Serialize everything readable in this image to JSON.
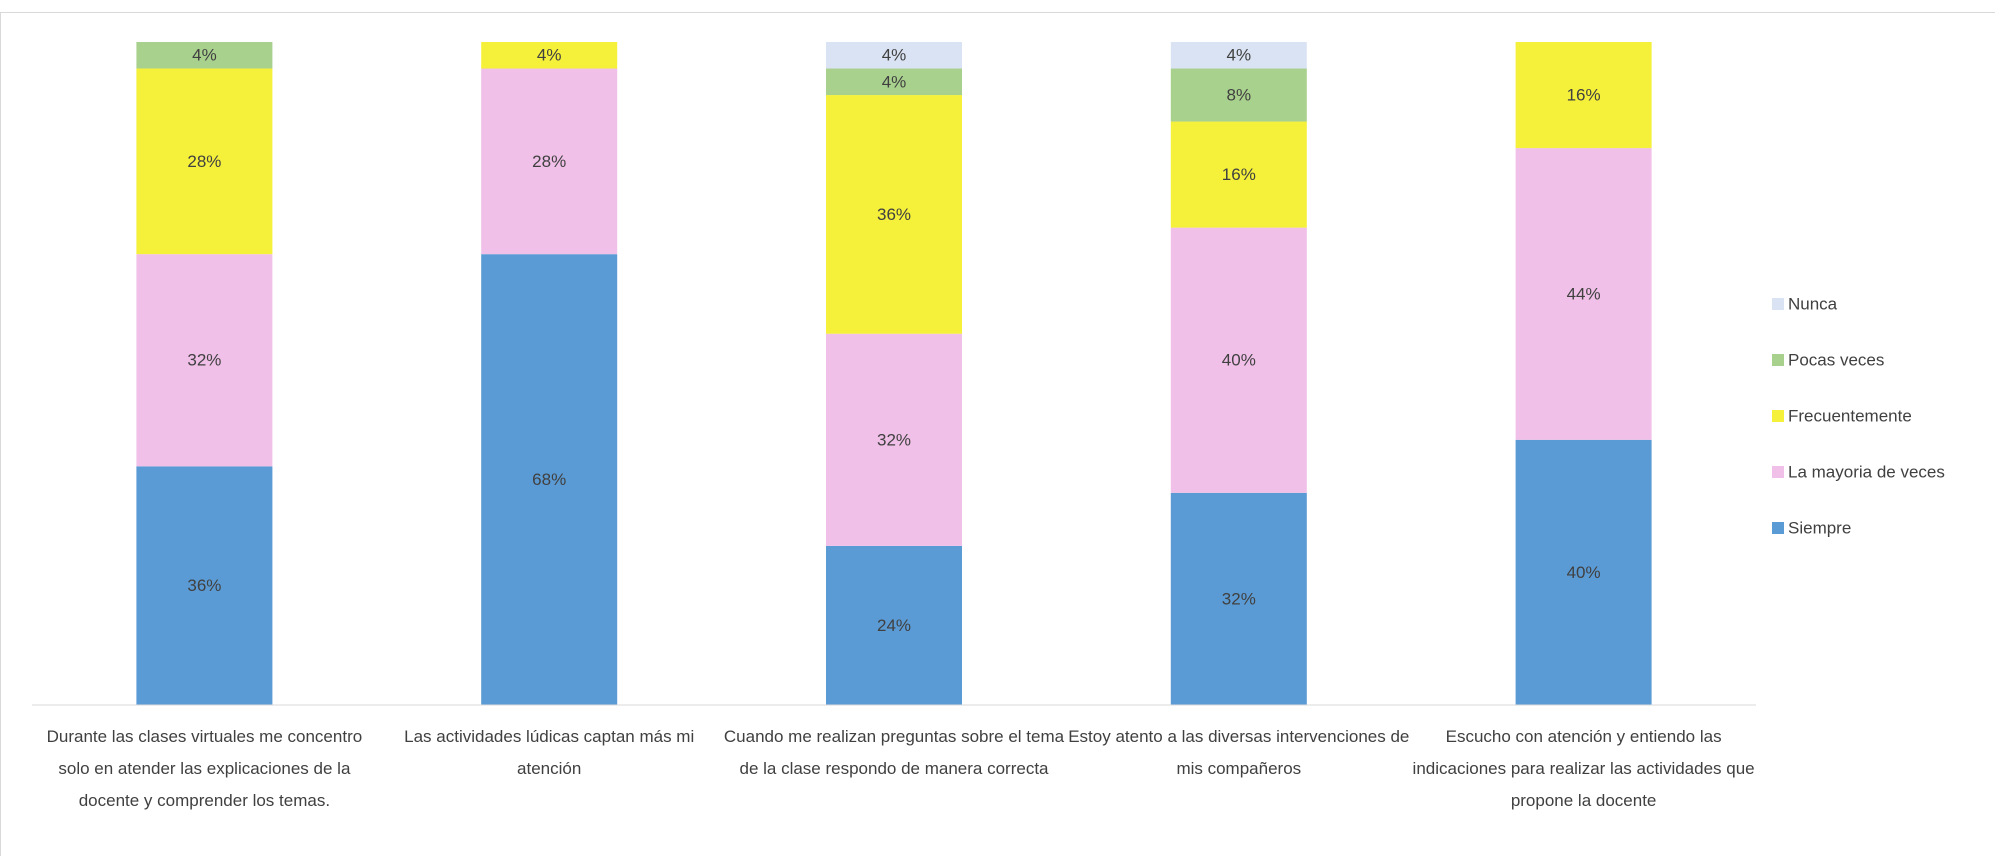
{
  "chart_data": {
    "type": "stacked_bar",
    "categories": [
      "Durante las clases virtuales me concentro solo en atender las explicaciones de la docente y comprender los temas.",
      "Las actividades lúdicas captan más mi atención",
      "Cuando me realizan preguntas sobre el tema de la clase respondo de manera correcta",
      "Estoy atento a las diversas intervenciones de mis compañeros",
      "Escucho con atención y entiendo las indicaciones para realizar las actividades que propone la docente"
    ],
    "series": [
      {
        "name": "Siempre",
        "color": "#5b9bd5",
        "values": [
          36,
          68,
          24,
          32,
          40
        ],
        "value_labels": [
          "36%",
          "68%",
          "24%",
          "32%",
          "40%"
        ]
      },
      {
        "name": "La mayoria de veces",
        "color": "#f0c0e8",
        "values": [
          32,
          28,
          32,
          40,
          44
        ],
        "value_labels": [
          "32%",
          "28%",
          "32%",
          "40%",
          "44%"
        ]
      },
      {
        "name": "Frecuentemente",
        "color": "#f5f03a",
        "values": [
          28,
          4,
          36,
          16,
          16
        ],
        "value_labels": [
          "28%",
          "4%",
          "36%",
          "16%",
          "16%"
        ]
      },
      {
        "name": "Pocas veces",
        "color": "#a9d18e",
        "values": [
          4,
          0,
          4,
          8,
          0
        ],
        "value_labels": [
          "4%",
          null,
          "4%",
          "8%",
          null
        ]
      },
      {
        "name": "Nunca",
        "color": "#dae3f3",
        "values": [
          0,
          0,
          4,
          4,
          0
        ],
        "value_labels": [
          null,
          null,
          "4%",
          "4%",
          null
        ]
      }
    ],
    "ylim": [
      0,
      100
    ],
    "legend": "right"
  }
}
